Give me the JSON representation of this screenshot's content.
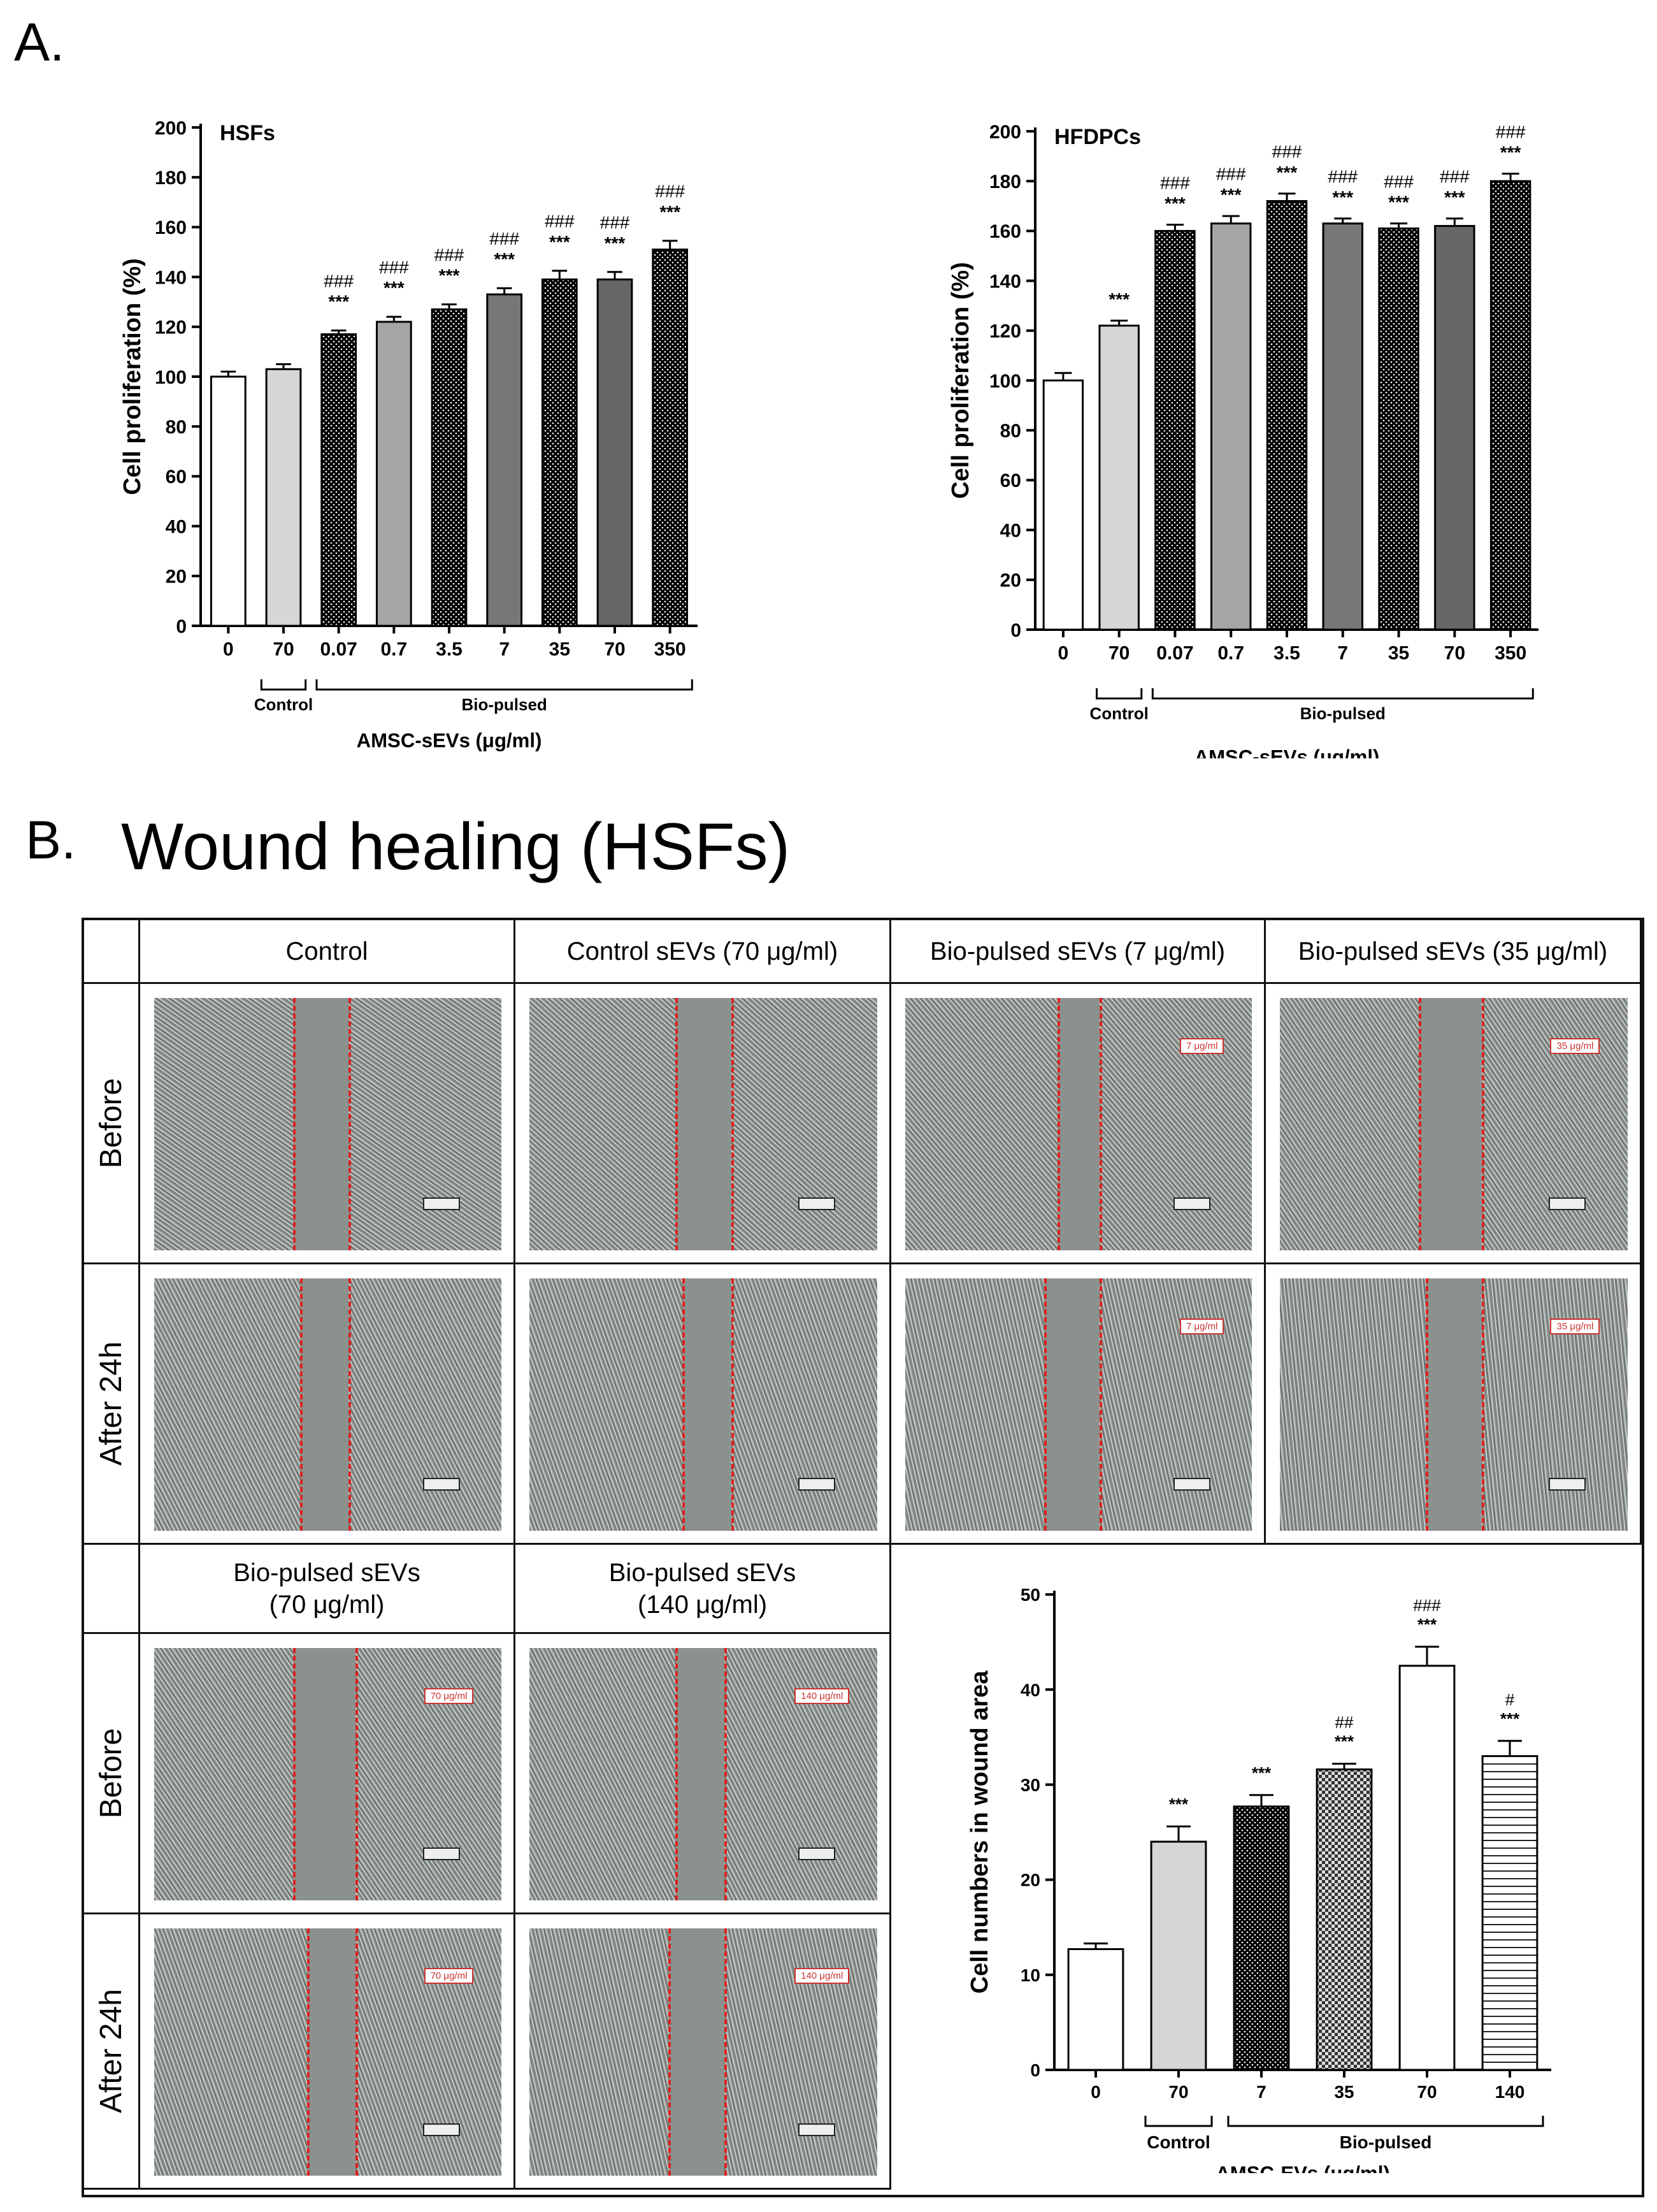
{
  "panel_a_label": "A.",
  "panel_b_label": "B.",
  "panel_b_title": "Wound healing (HSFs)",
  "chart_data": [
    {
      "type": "bar",
      "title": "HSFs",
      "ylabel": "Cell proliferation (%)",
      "xlabel": "AMSC-sEVs (μg/ml)",
      "ylim": [
        0,
        200
      ],
      "yticks": [
        0,
        20,
        40,
        60,
        80,
        100,
        120,
        140,
        160,
        180,
        200
      ],
      "categories": [
        "0",
        "70",
        "0.07",
        "0.7",
        "3.5",
        "7",
        "35",
        "70",
        "350"
      ],
      "values": [
        100,
        103,
        117,
        122,
        127,
        133,
        139,
        139,
        151
      ],
      "errors": [
        2,
        2,
        1.5,
        2,
        2,
        2.5,
        3.5,
        3,
        3.5
      ],
      "sig_star": [
        "",
        "",
        "***",
        "***",
        "***",
        "***",
        "***",
        "***",
        "***"
      ],
      "sig_hash": [
        "",
        "",
        "###",
        "###",
        "###",
        "###",
        "###",
        "###",
        "###"
      ],
      "groups": [
        {
          "label": "Control",
          "from": 1,
          "to": 1
        },
        {
          "label": "Bio-pulsed",
          "from": 2,
          "to": 8
        }
      ],
      "fills": [
        "#ffffff",
        "#d6d6d6",
        "#dcdcdc",
        "#a5a5a5",
        "#b4b4b4",
        "#777777",
        "#8b8b8b",
        "#666666",
        "#7a7a7a"
      ],
      "patterns": [
        "none",
        "none",
        "dots",
        "none",
        "dots",
        "none",
        "dots",
        "none",
        "dots"
      ]
    },
    {
      "type": "bar",
      "title": "HFDPCs",
      "ylabel": "Cell proliferation (%)",
      "xlabel": "AMSC-sEVs (μg/ml)",
      "ylim": [
        0,
        200
      ],
      "yticks": [
        0,
        20,
        40,
        60,
        80,
        100,
        120,
        140,
        160,
        180,
        200
      ],
      "categories": [
        "0",
        "70",
        "0.07",
        "0.7",
        "3.5",
        "7",
        "35",
        "70",
        "350"
      ],
      "values": [
        100,
        122,
        160,
        163,
        172,
        163,
        161,
        162,
        180
      ],
      "errors": [
        3,
        2,
        2.5,
        3,
        3,
        2,
        2,
        3,
        3
      ],
      "sig_star": [
        "",
        "***",
        "***",
        "***",
        "***",
        "***",
        "***",
        "***",
        "***"
      ],
      "sig_hash": [
        "",
        "",
        "###",
        "###",
        "###",
        "###",
        "###",
        "###",
        "###"
      ],
      "groups": [
        {
          "label": "Control",
          "from": 1,
          "to": 1
        },
        {
          "label": "Bio-pulsed",
          "from": 2,
          "to": 8
        }
      ],
      "fills": [
        "#ffffff",
        "#d6d6d6",
        "#dcdcdc",
        "#a5a5a5",
        "#b4b4b4",
        "#777777",
        "#8b8b8b",
        "#666666",
        "#7a7a7a"
      ],
      "patterns": [
        "none",
        "none",
        "dots",
        "none",
        "dots",
        "none",
        "dots",
        "none",
        "dots"
      ]
    },
    {
      "type": "bar",
      "title": "",
      "ylabel": "Cell numbers in wound area",
      "xlabel": "AMSC-EVs (μg/ml)",
      "ylim": [
        0,
        50
      ],
      "yticks": [
        0,
        10,
        20,
        30,
        40,
        50
      ],
      "categories": [
        "0",
        "70",
        "7",
        "35",
        "70",
        "140"
      ],
      "values": [
        12.7,
        24,
        27.7,
        31.6,
        42.5,
        33
      ],
      "errors": [
        0.6,
        1.6,
        1.2,
        0.6,
        2,
        1.6
      ],
      "sig_star": [
        "",
        "***",
        "***",
        "***",
        "***",
        "***"
      ],
      "sig_hash": [
        "",
        "",
        "",
        "##",
        "###",
        "#"
      ],
      "groups": [
        {
          "label": "Control",
          "from": 1,
          "to": 1
        },
        {
          "label": "Bio-pulsed",
          "from": 2,
          "to": 5
        }
      ],
      "fills": [
        "#ffffff",
        "#d6d6d6",
        "#ffffff",
        "#ffffff",
        "#ffffff",
        "#ffffff"
      ],
      "patterns": [
        "none",
        "none",
        "dots",
        "checker",
        "none",
        "hlines"
      ]
    }
  ],
  "wound_table": {
    "top_headers": [
      "Control",
      "Control sEVs (70 μg/ml)",
      "Bio-pulsed sEVs (7 μg/ml)",
      "Bio-pulsed sEVs (35 μg/ml)"
    ],
    "bottom_headers": [
      "Bio-pulsed sEVs\n(70 μg/ml)",
      "Bio-pulsed sEVs\n(140 μg/ml)"
    ],
    "row_labels": [
      "Before",
      "After 24h"
    ],
    "image_tags_top": [
      "",
      "",
      "7 μg/ml",
      "35 μg/ml"
    ],
    "image_tags_bottom": [
      "70 μg/ml",
      "140 μg/ml"
    ]
  }
}
